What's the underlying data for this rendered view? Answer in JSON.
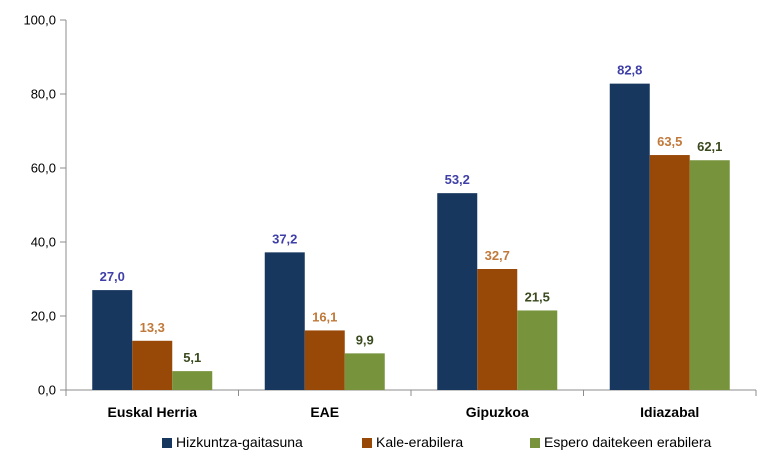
{
  "chart_data": {
    "type": "bar",
    "categories": [
      "Euskal Herria",
      "EAE",
      "Gipuzkoa",
      "Idiazabal"
    ],
    "series": [
      {
        "name": "Hizkuntza-gaitasuna",
        "values": [
          27.0,
          37.2,
          53.2,
          82.8
        ],
        "color": "#17375E",
        "label_color": "#3F3FA8"
      },
      {
        "name": "Kale-erabilera",
        "values": [
          13.3,
          16.1,
          32.7,
          63.5
        ],
        "color": "#984807",
        "label_color": "#C0793A"
      },
      {
        "name": "Espero daitekeen erabilera",
        "values": [
          5.1,
          9.9,
          21.5,
          62.1
        ],
        "color": "#77933C",
        "label_color": "#3A4A1E"
      }
    ],
    "data_labels": [
      [
        "27,0",
        "37,2",
        "53,2",
        "82,8"
      ],
      [
        "13,3",
        "16,1",
        "32,7",
        "63,5"
      ],
      [
        "5,1",
        "9,9",
        "21,5",
        "62,1"
      ]
    ],
    "y_ticks": [
      "0,0",
      "20,0",
      "40,0",
      "60,0",
      "80,0",
      "100,0"
    ],
    "ylim": [
      0,
      100
    ],
    "grid": false,
    "legend_position": "bottom"
  }
}
